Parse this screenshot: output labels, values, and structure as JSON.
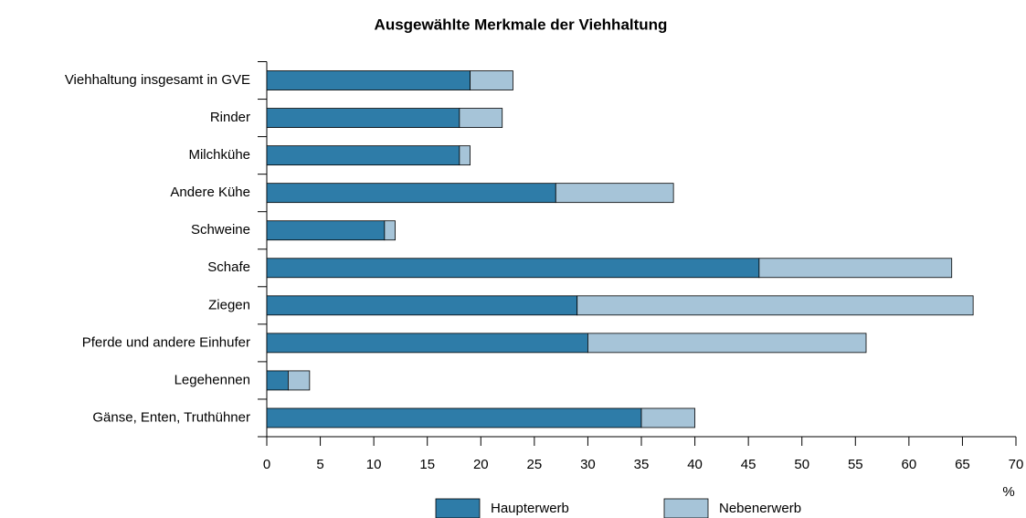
{
  "chart_data": {
    "type": "stacked-bar-horizontal",
    "title": "Ausgewählte Merkmale der Viehhaltung",
    "x_label": "%",
    "categories": [
      "Viehhaltung insgesamt in GVE",
      "Rinder",
      "Milchkühe",
      "Andere Kühe",
      "Schweine",
      "Schafe",
      "Ziegen",
      "Pferde und andere Einhufer",
      "Legehennen",
      "Gänse, Enten, Truthühner"
    ],
    "series": [
      {
        "name": "Haupterwerb",
        "color": "#2e7ca8",
        "values": [
          19,
          18,
          18,
          27,
          11,
          46,
          29,
          30,
          2,
          35
        ]
      },
      {
        "name": "Nebenerwerb",
        "color": "#a6c4d8",
        "values": [
          4,
          4,
          1,
          11,
          1,
          18,
          37,
          26,
          2,
          5
        ]
      }
    ],
    "xlim": [
      0,
      70
    ],
    "xticks": [
      0,
      5,
      10,
      15,
      20,
      25,
      30,
      35,
      40,
      45,
      50,
      55,
      60,
      65,
      70
    ]
  }
}
